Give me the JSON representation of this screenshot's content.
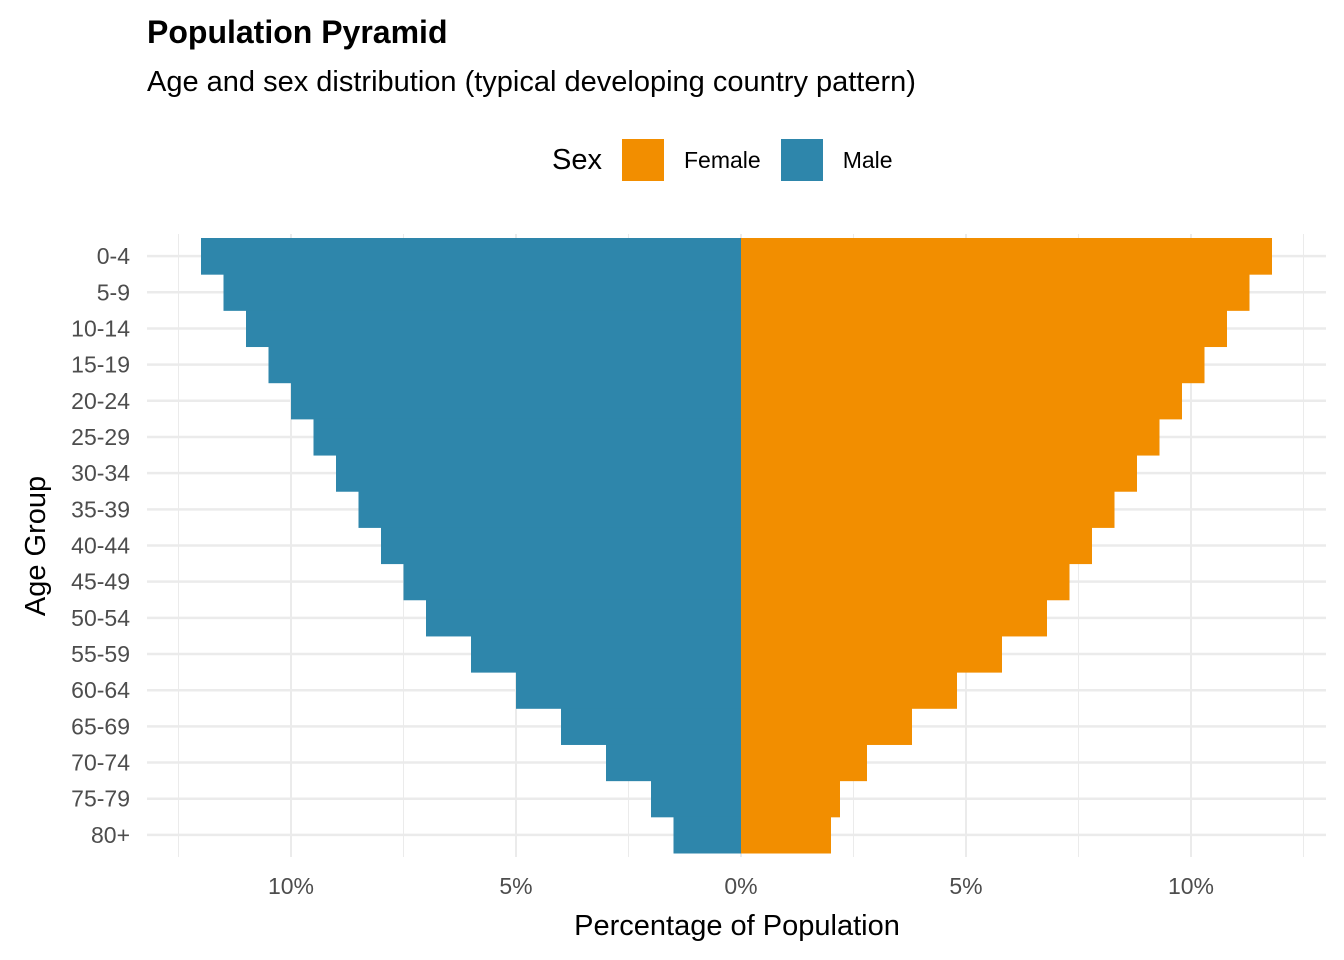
{
  "chart_data": {
    "type": "bar",
    "orientation": "horizontal",
    "title": "Population Pyramid",
    "subtitle": "Age and sex distribution (typical developing country pattern)",
    "xlabel": "Percentage of Population",
    "ylabel": "Age Group",
    "categories": [
      "0-4",
      "5-9",
      "10-14",
      "15-19",
      "20-24",
      "25-29",
      "30-34",
      "35-39",
      "40-44",
      "45-49",
      "50-54",
      "55-59",
      "60-64",
      "65-69",
      "70-74",
      "75-79",
      "80+"
    ],
    "series": [
      {
        "name": "Female",
        "color": "#F28E00",
        "side": "right",
        "values": [
          11.8,
          11.3,
          10.8,
          10.3,
          9.8,
          9.3,
          8.8,
          8.3,
          7.8,
          7.3,
          6.8,
          5.8,
          4.8,
          3.8,
          2.8,
          2.2,
          2.0
        ]
      },
      {
        "name": "Male",
        "color": "#2E86AB",
        "side": "left",
        "values": [
          12.0,
          11.5,
          11.0,
          10.5,
          10.0,
          9.5,
          9.0,
          8.5,
          8.0,
          7.5,
          7.0,
          6.0,
          5.0,
          4.0,
          3.0,
          2.0,
          1.5
        ]
      }
    ],
    "xlim": [
      -12.6,
      12.6
    ],
    "x_ticks": [
      -10,
      -5,
      0,
      5,
      10
    ],
    "x_tick_labels": [
      "10%",
      "5%",
      "0%",
      "5%",
      "10%"
    ],
    "x_minor_ticks": [
      -12.5,
      -7.5,
      -2.5,
      2.5,
      7.5,
      12.5
    ],
    "grid": true,
    "legend": {
      "title": "Sex",
      "position": "top",
      "entries": [
        "Female",
        "Male"
      ]
    }
  }
}
